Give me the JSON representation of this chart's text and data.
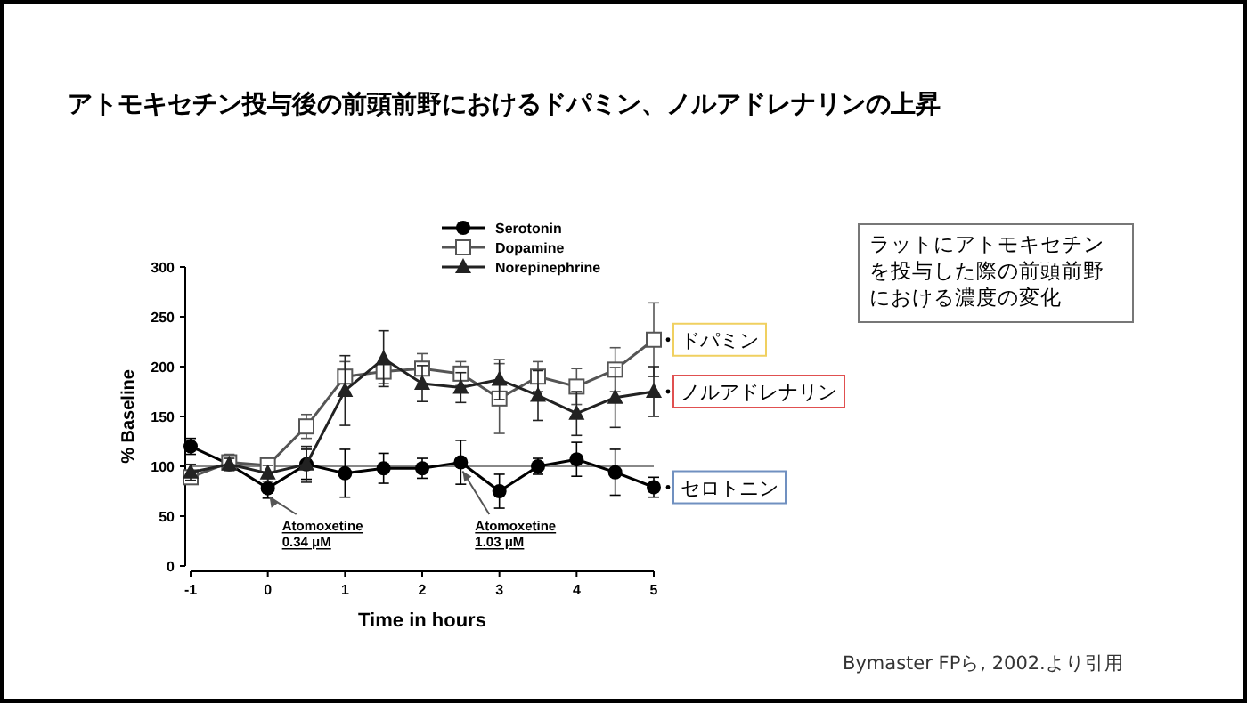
{
  "chart_data": {
    "type": "line",
    "title": "アトモキセチン投与後の前頭前野におけるドパミン、ノルアドレナリンの上昇",
    "xlabel": "Time in hours",
    "ylabel": "% Baseline",
    "x": [
      -1,
      -0.5,
      0,
      0.5,
      1,
      1.5,
      2,
      2.5,
      3,
      3.5,
      4,
      4.5,
      5
    ],
    "series": [
      {
        "name": "Serotonin",
        "color": "#000000",
        "marker": "circle",
        "values": [
          120,
          102,
          78,
          102,
          93,
          98,
          98,
          104,
          75,
          100,
          107,
          94,
          79
        ],
        "errors": [
          8,
          6,
          10,
          15,
          24,
          15,
          10,
          22,
          17,
          8,
          17,
          23,
          10
        ]
      },
      {
        "name": "Dopamine",
        "color": "#555555",
        "marker": "square",
        "values": [
          89,
          104,
          101,
          140,
          190,
          195,
          198,
          193,
          168,
          190,
          180,
          197,
          227
        ],
        "errors": [
          5,
          8,
          5,
          12,
          15,
          12,
          15,
          12,
          35,
          15,
          18,
          22,
          37
        ]
      },
      {
        "name": "Norepinephrine",
        "color": "#222222",
        "marker": "triangle",
        "values": [
          94,
          102,
          93,
          102,
          176,
          208,
          183,
          179,
          187,
          171,
          153,
          169,
          175
        ],
        "errors": [
          8,
          6,
          8,
          18,
          35,
          28,
          18,
          15,
          20,
          25,
          22,
          30,
          25
        ]
      }
    ],
    "xlim": [
      -1,
      5
    ],
    "xticks": [
      -1,
      0,
      1,
      2,
      3,
      4,
      5
    ],
    "ylim": [
      0,
      300
    ],
    "yticks": [
      0,
      50,
      100,
      150,
      200,
      250,
      300
    ],
    "ref_lines": [
      {
        "axis": "y",
        "value": 100,
        "color": "#888888"
      }
    ],
    "legend": "top",
    "grid": false,
    "annotations": [
      {
        "text": "Atomoxetine\n0.34 μM",
        "x": 0,
        "y": 78
      },
      {
        "text": "Atomoxetine\n1.03 μM",
        "x": 2.5,
        "y": 104
      },
      {
        "text": "ドパミン",
        "x": 5,
        "y": 227
      },
      {
        "text": "ノルアドレナリン",
        "x": 5,
        "y": 175
      },
      {
        "text": "セロトニン",
        "x": 5,
        "y": 79
      },
      "ラットにアトモキセチンを投与した際の前頭前野における濃度の変化",
      "Bymaster FPら, 2002.より引用"
    ]
  }
}
